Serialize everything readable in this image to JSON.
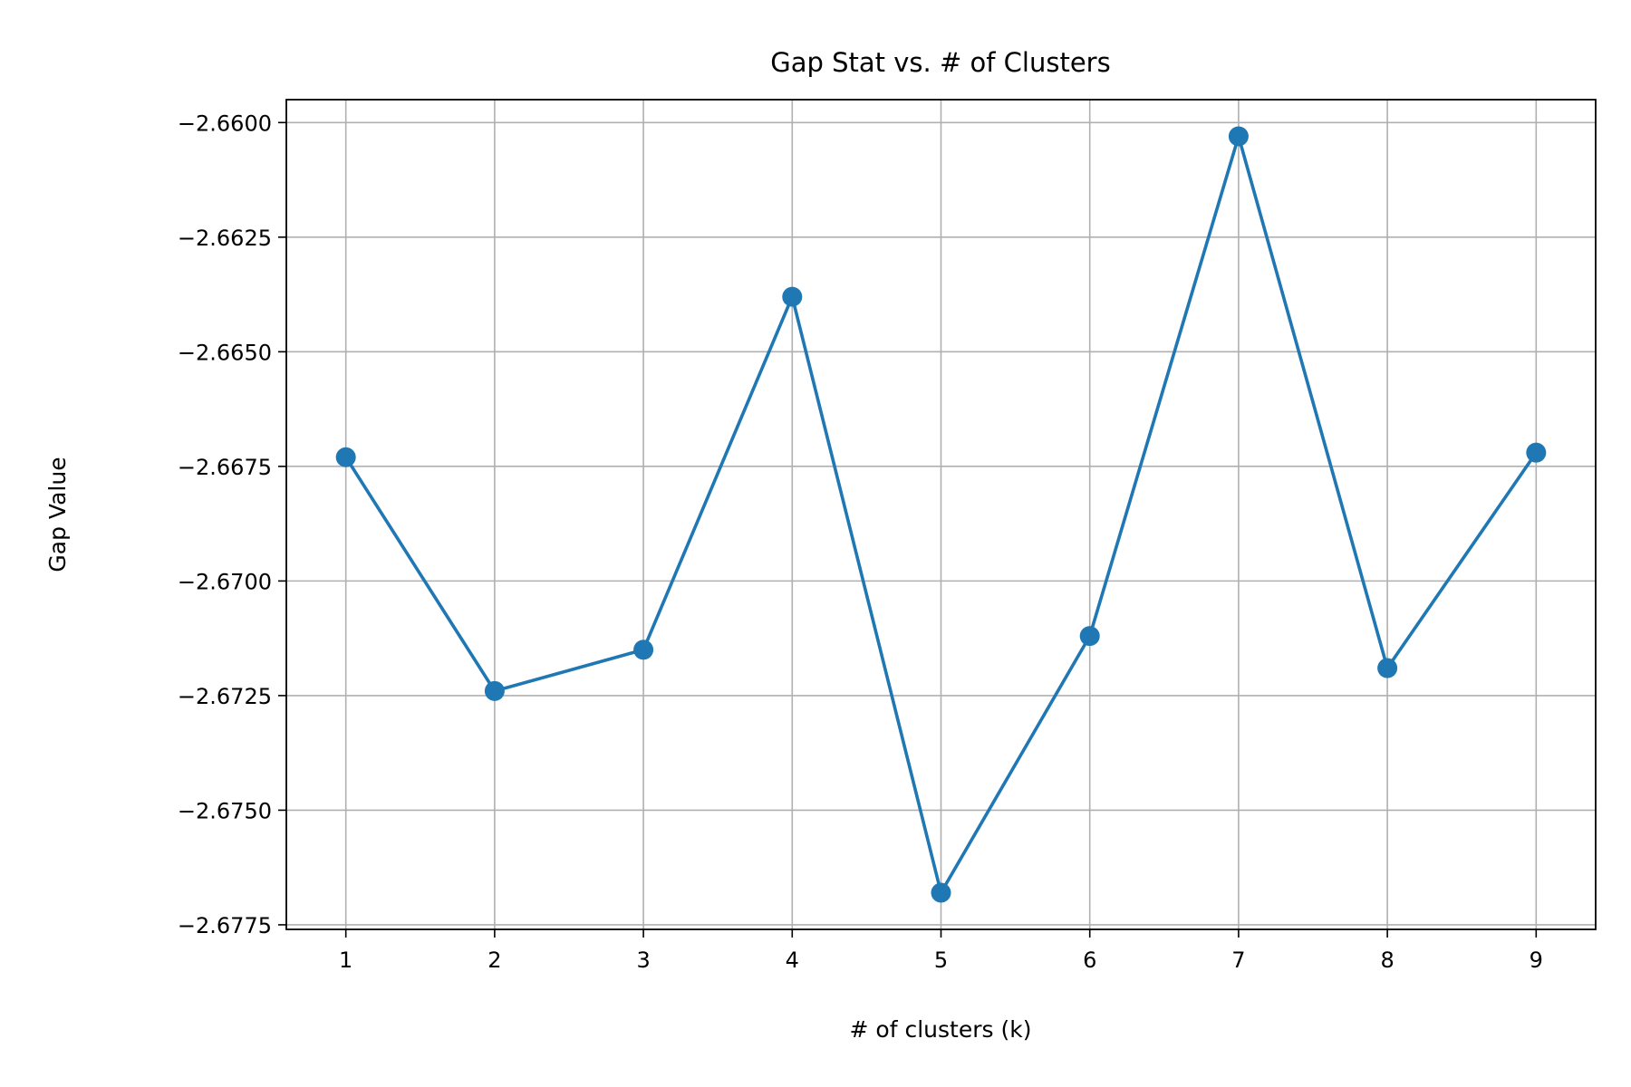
{
  "chart_data": {
    "type": "line",
    "title": "Gap Stat vs. # of Clusters",
    "xlabel": "# of clusters (k)",
    "ylabel": "Gap Value",
    "x": [
      1,
      2,
      3,
      4,
      5,
      6,
      7,
      8,
      9
    ],
    "series": [
      {
        "values": [
          -2.6673,
          -2.6724,
          -2.6715,
          -2.6638,
          -2.6768,
          -2.6712,
          -2.6603,
          -2.6719,
          -2.6672
        ],
        "color": "#1f77b4",
        "marker": "circle"
      }
    ],
    "xlim": [
      0.6,
      9.4
    ],
    "ylim": [
      -2.6776,
      -2.6595
    ],
    "xticks": [
      "1",
      "2",
      "3",
      "4",
      "5",
      "6",
      "7",
      "8",
      "9"
    ],
    "xtick_values": [
      1,
      2,
      3,
      4,
      5,
      6,
      7,
      8,
      9
    ],
    "yticks": [
      "−2.6600",
      "−2.6625",
      "−2.6650",
      "−2.6675",
      "−2.6700",
      "−2.6725",
      "−2.6750",
      "−2.6775"
    ],
    "ytick_values": [
      -2.66,
      -2.6625,
      -2.665,
      -2.6675,
      -2.67,
      -2.6725,
      -2.675,
      -2.6775
    ],
    "grid": true,
    "legend": false
  }
}
